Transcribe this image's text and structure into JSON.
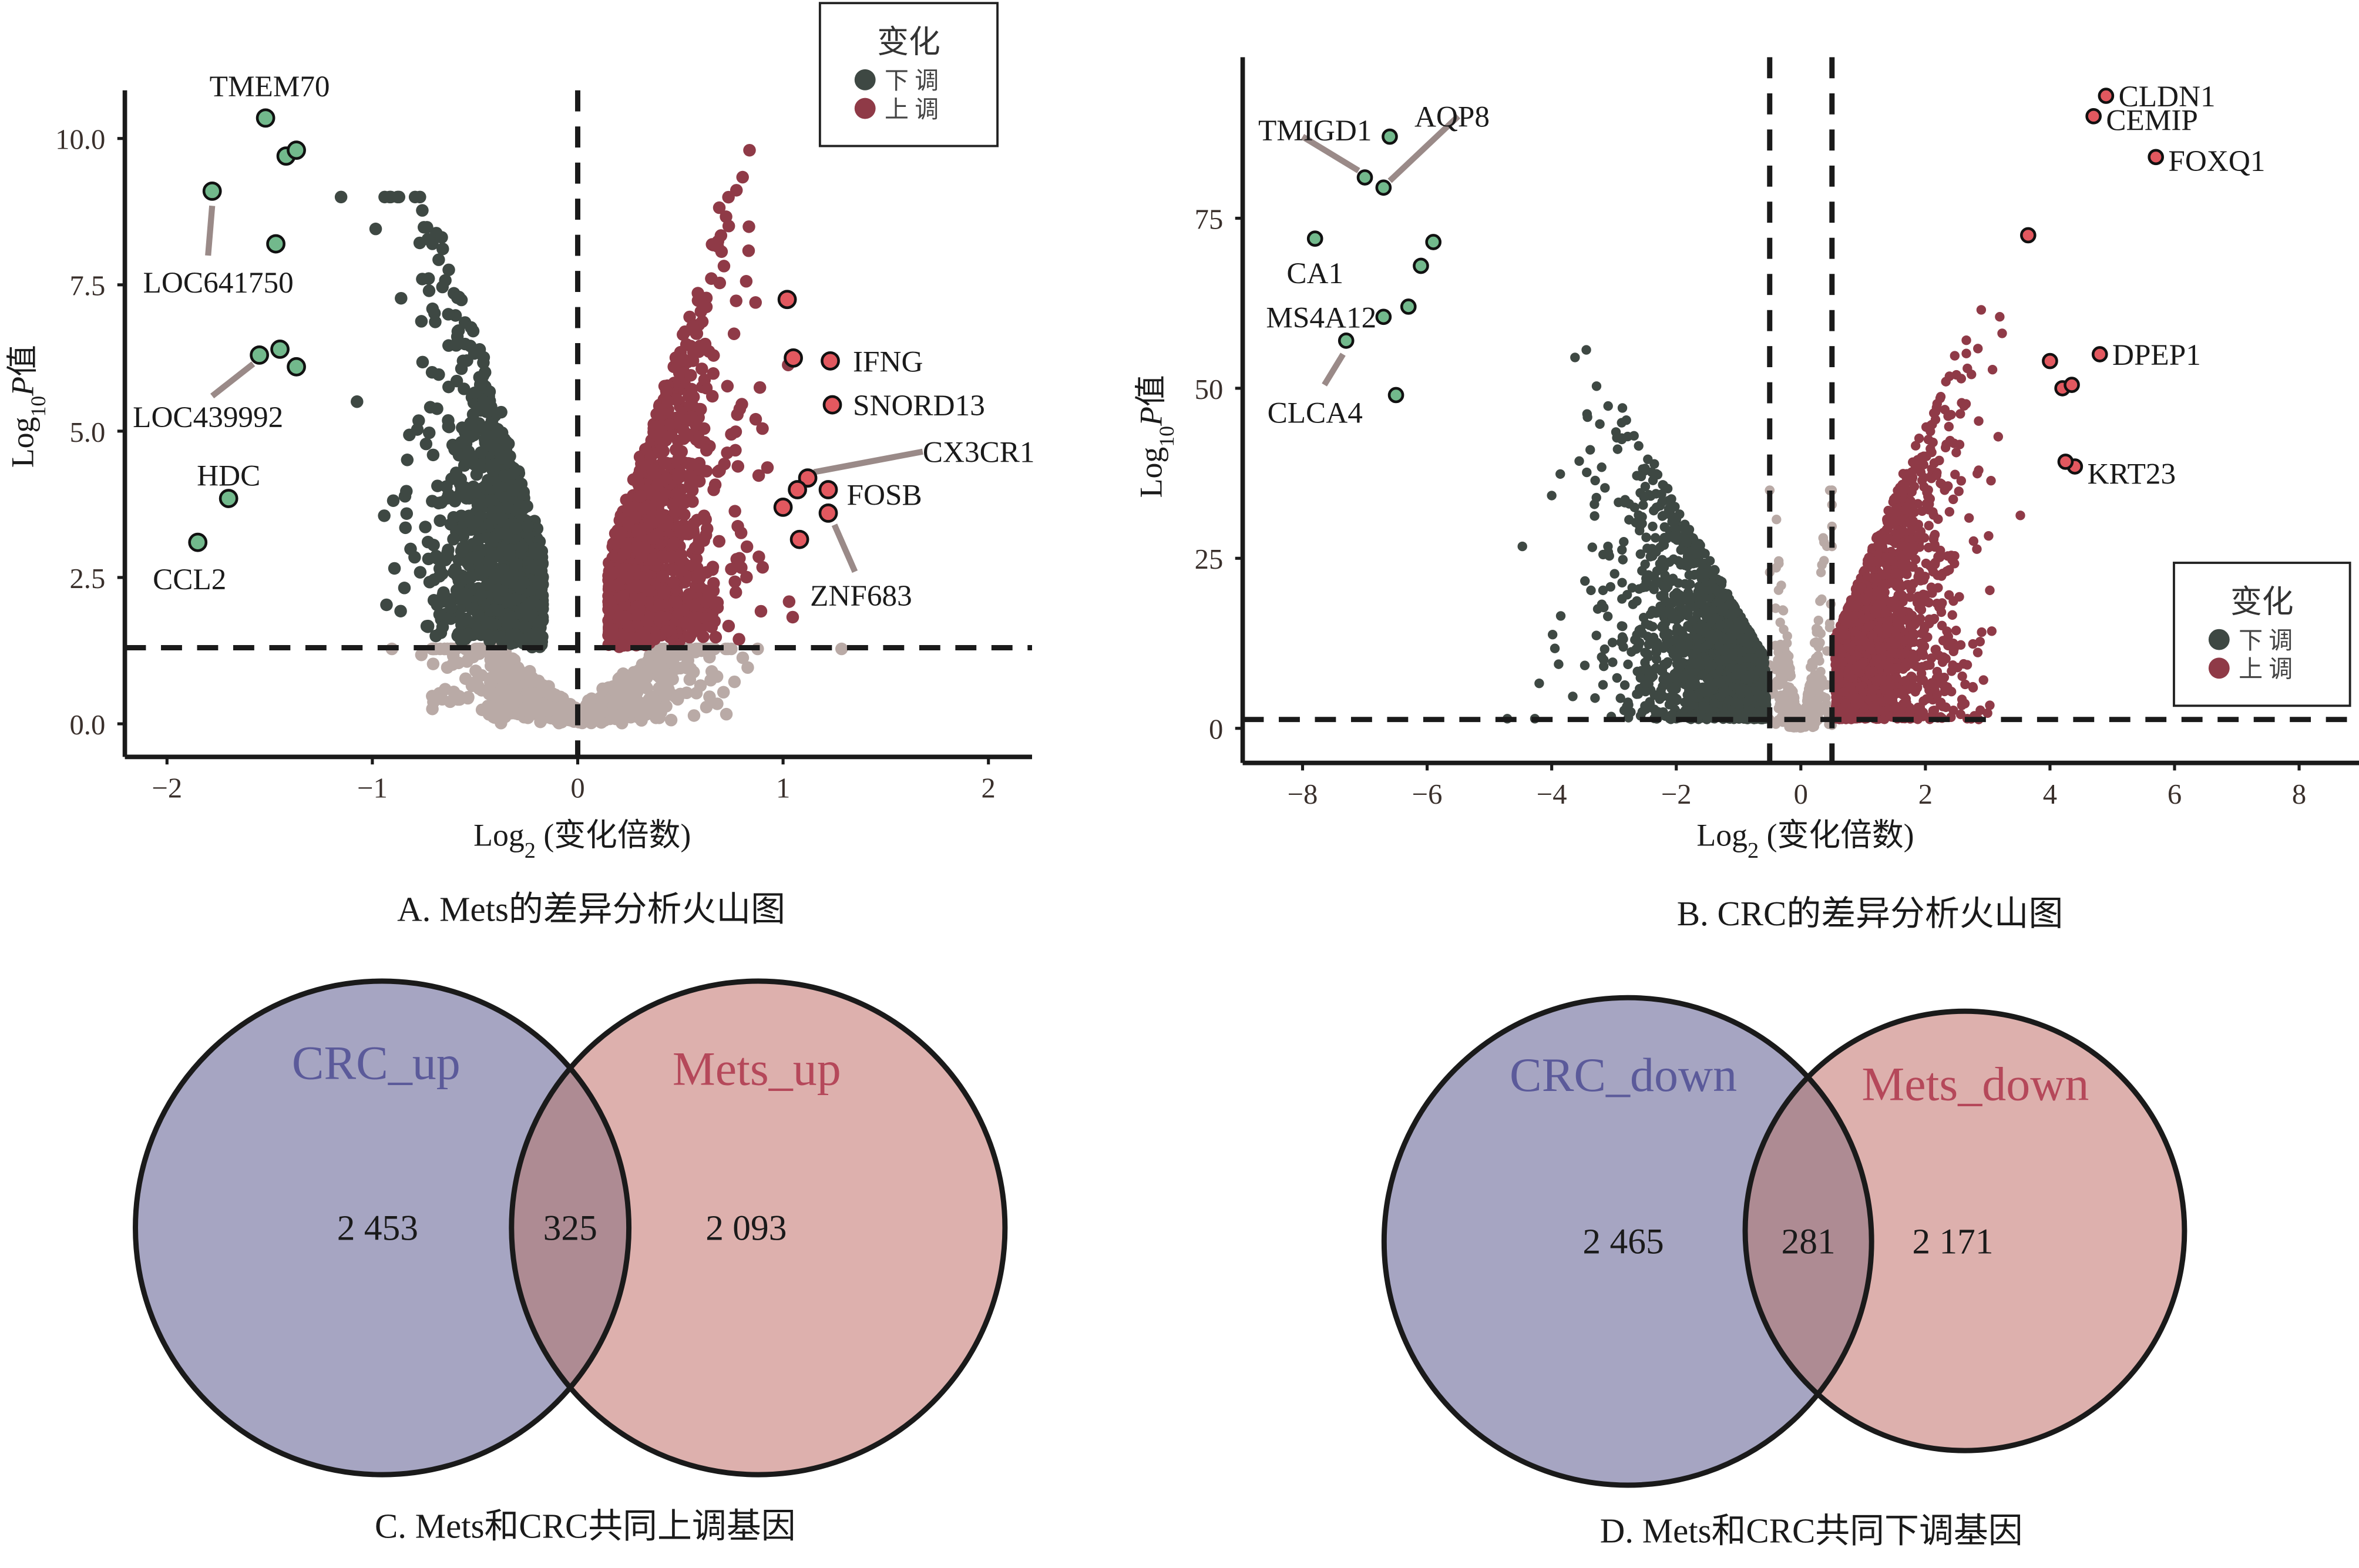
{
  "colors": {
    "down": "#3e4843",
    "up": "#8f3a47",
    "ns": "#b9aaa6",
    "down_highlight": "#72b98c",
    "up_highlight": "#e2585f",
    "venn_left": "#a6a5c2",
    "venn_right": "#ddb0ad",
    "venn_left_text": "#5b5a9a",
    "venn_right_text": "#b5485a"
  },
  "chart_data": [
    {
      "type": "scatter",
      "panel": "A",
      "caption": "A. Mets的差异分析火山图",
      "xlabel": "Log2 (变化倍数)",
      "xlabel_main": "Log",
      "xlabel_sub": "2",
      "xlabel_rest": " (变化倍数)",
      "ylabel_main": "Log",
      "ylabel_sub": "10",
      "ylabel_rest": "P值",
      "xlim": [
        -2.2,
        2.2
      ],
      "ylim": [
        -0.3,
        11
      ],
      "xticks": [
        -2,
        -1,
        0,
        1,
        2
      ],
      "xtick_labels": [
        "−2",
        "−1",
        "0",
        "1",
        "2"
      ],
      "yticks": [
        0,
        2.5,
        5,
        7.5,
        10
      ],
      "ytick_labels": [
        "0.0",
        "2.5",
        "5.0",
        "7.5",
        "10.0"
      ],
      "thresholds": {
        "x": [
          0
        ],
        "y": 1.3
      },
      "legend": {
        "title": "变化",
        "items": [
          "下 调",
          "上 调"
        ],
        "placement": "top-right"
      },
      "highlighted": [
        {
          "gene": "TMEM70",
          "x": -1.52,
          "y": 10.35,
          "dir": "down"
        },
        {
          "gene": "",
          "x": -1.42,
          "y": 9.7,
          "dir": "down"
        },
        {
          "gene": "",
          "x": -1.37,
          "y": 9.8,
          "dir": "down"
        },
        {
          "gene": "LOC641750",
          "x": -1.78,
          "y": 9.1,
          "dir": "down"
        },
        {
          "gene": "",
          "x": -1.47,
          "y": 8.2,
          "dir": "down"
        },
        {
          "gene": "LOC439992",
          "x": -1.55,
          "y": 6.3,
          "dir": "down"
        },
        {
          "gene": "",
          "x": -1.45,
          "y": 6.4,
          "dir": "down"
        },
        {
          "gene": "",
          "x": -1.37,
          "y": 6.1,
          "dir": "down"
        },
        {
          "gene": "HDC",
          "x": -1.7,
          "y": 3.85,
          "dir": "down"
        },
        {
          "gene": "CCL2",
          "x": -1.85,
          "y": 3.1,
          "dir": "down"
        },
        {
          "gene": "",
          "x": 1.02,
          "y": 7.25,
          "dir": "up"
        },
        {
          "gene": "",
          "x": 1.05,
          "y": 6.25,
          "dir": "up"
        },
        {
          "gene": "IFNG",
          "x": 1.23,
          "y": 6.2,
          "dir": "up"
        },
        {
          "gene": "SNORD13",
          "x": 1.24,
          "y": 5.45,
          "dir": "up"
        },
        {
          "gene": "CX3CR1",
          "x": 1.12,
          "y": 4.2,
          "dir": "up"
        },
        {
          "gene": "",
          "x": 1.07,
          "y": 4.0,
          "dir": "up"
        },
        {
          "gene": "FOSB",
          "x": 1.22,
          "y": 4.0,
          "dir": "up"
        },
        {
          "gene": "",
          "x": 1.0,
          "y": 3.7,
          "dir": "up"
        },
        {
          "gene": "ZNF683",
          "x": 1.22,
          "y": 3.6,
          "dir": "up"
        },
        {
          "gene": "",
          "x": 1.08,
          "y": 3.15,
          "dir": "up"
        }
      ]
    },
    {
      "type": "scatter",
      "panel": "B",
      "caption": "B. CRC的差异分析火山图",
      "xlabel": "Log2 (变化倍数)",
      "xlabel_main": "Log",
      "xlabel_sub": "2",
      "xlabel_rest": " (变化倍数)",
      "ylabel_main": "Log",
      "ylabel_sub": "10",
      "ylabel_rest": "P值",
      "xlim": [
        -9,
        9
      ],
      "ylim": [
        -5,
        99
      ],
      "xticks": [
        -8,
        -6,
        -4,
        -2,
        0,
        2,
        4,
        6,
        8
      ],
      "xtick_labels": [
        "−8",
        "−6",
        "−4",
        "−2",
        "0",
        "2",
        "4",
        "6",
        "8"
      ],
      "yticks": [
        0,
        25,
        50,
        75
      ],
      "ytick_labels": [
        "0",
        "25",
        "50",
        "75"
      ],
      "thresholds": {
        "x": [
          -0.5,
          0.5
        ],
        "y": 1.3
      },
      "legend": {
        "title": "变化",
        "items": [
          "下 调",
          "上 调"
        ],
        "placement": "bottom-right"
      },
      "highlighted": [
        {
          "gene": "CLDN1",
          "x": 4.9,
          "y": 93,
          "dir": "up"
        },
        {
          "gene": "CEMIP",
          "x": 4.7,
          "y": 90,
          "dir": "up"
        },
        {
          "gene": "FOXQ1",
          "x": 5.7,
          "y": 84,
          "dir": "up"
        },
        {
          "gene": "",
          "x": 3.65,
          "y": 72.5,
          "dir": "up"
        },
        {
          "gene": "DPEP1",
          "x": 4.8,
          "y": 55,
          "dir": "up"
        },
        {
          "gene": "",
          "x": 4.0,
          "y": 54,
          "dir": "up"
        },
        {
          "gene": "",
          "x": 4.2,
          "y": 50,
          "dir": "up"
        },
        {
          "gene": "",
          "x": 4.35,
          "y": 50.5,
          "dir": "up"
        },
        {
          "gene": "KRT23",
          "x": 4.4,
          "y": 38.5,
          "dir": "up"
        },
        {
          "gene": "",
          "x": 4.25,
          "y": 39.2,
          "dir": "up"
        },
        {
          "gene": "",
          "x": -6.6,
          "y": 87,
          "dir": "down"
        },
        {
          "gene": "TMIGD1",
          "x": -7.0,
          "y": 81,
          "dir": "down"
        },
        {
          "gene": "AQP8",
          "x": -6.7,
          "y": 79.5,
          "dir": "down"
        },
        {
          "gene": "CA1",
          "x": -7.8,
          "y": 72,
          "dir": "down"
        },
        {
          "gene": "",
          "x": -5.9,
          "y": 71.5,
          "dir": "down"
        },
        {
          "gene": "",
          "x": -6.1,
          "y": 68,
          "dir": "down"
        },
        {
          "gene": "",
          "x": -6.3,
          "y": 62,
          "dir": "down"
        },
        {
          "gene": "MS4A12",
          "x": -6.7,
          "y": 60.5,
          "dir": "down"
        },
        {
          "gene": "CLCA4",
          "x": -7.3,
          "y": 57,
          "dir": "down"
        },
        {
          "gene": "",
          "x": -6.5,
          "y": 49,
          "dir": "down"
        }
      ]
    },
    {
      "type": "venn",
      "panel": "C",
      "caption": "C. Mets和CRC共同上调基因",
      "sets": [
        "CRC_up",
        "Mets_up"
      ],
      "left_only": "2 453",
      "intersection": "325",
      "right_only": "2 093"
    },
    {
      "type": "venn",
      "panel": "D",
      "caption": "D. Mets和CRC共同下调基因",
      "sets": [
        "CRC_down",
        "Mets_down"
      ],
      "left_only": "2 465",
      "intersection": "281",
      "right_only": "2 171"
    }
  ]
}
